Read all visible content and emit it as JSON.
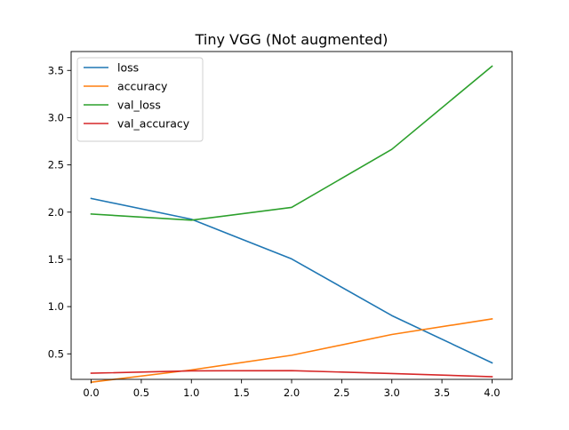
{
  "chart_data": {
    "type": "line",
    "title": "Tiny VGG (Not augmented)",
    "xlabel": "",
    "ylabel": "",
    "x": [
      0,
      1,
      2,
      3,
      4
    ],
    "xlim": [
      -0.2,
      4.2
    ],
    "ylim": [
      0.23,
      3.7
    ],
    "xticks": [
      0.0,
      0.5,
      1.0,
      1.5,
      2.0,
      2.5,
      3.0,
      3.5,
      4.0
    ],
    "xtick_labels": [
      "0.0",
      "0.5",
      "1.0",
      "1.5",
      "2.0",
      "2.5",
      "3.0",
      "3.5",
      "4.0"
    ],
    "yticks": [
      0.5,
      1.0,
      1.5,
      2.0,
      2.5,
      3.0,
      3.5
    ],
    "ytick_labels": [
      "0.5",
      "1.0",
      "1.5",
      "2.0",
      "2.5",
      "3.0",
      "3.5"
    ],
    "grid": false,
    "legend_position": "top-left",
    "series": [
      {
        "name": "loss",
        "color": "#1f77b4",
        "values": [
          2.145,
          1.925,
          1.505,
          0.905,
          0.405
        ]
      },
      {
        "name": "accuracy",
        "color": "#ff7f0e",
        "values": [
          0.2,
          0.33,
          0.485,
          0.705,
          0.87
        ]
      },
      {
        "name": "val_loss",
        "color": "#2ca02c",
        "values": [
          1.98,
          1.915,
          2.05,
          2.665,
          3.545
        ]
      },
      {
        "name": "val_accuracy",
        "color": "#d62728",
        "values": [
          0.295,
          0.32,
          0.322,
          0.292,
          0.258
        ]
      }
    ]
  }
}
